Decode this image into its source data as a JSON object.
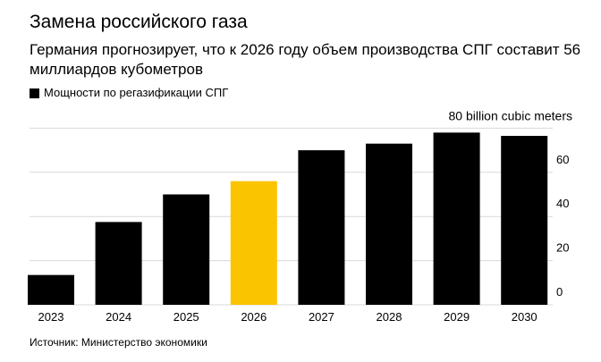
{
  "colors": {
    "bar": "#000000",
    "highlight": "#fbc400",
    "grid": "#d9d9d9",
    "text": "#000000"
  },
  "chart_data": {
    "type": "bar",
    "title": "Замена российского газа",
    "subtitle": "Германия прогнозирует, что к 2026 году объем производства СПГ составит 56 миллиардов кубометров",
    "legend": "Мощности по регазификации СПГ",
    "ylabel": "80 billion cubic meters",
    "source": "Источник: Министерство экономики",
    "categories": [
      "2023",
      "2024",
      "2025",
      "2026",
      "2027",
      "2028",
      "2029",
      "2030"
    ],
    "series": [
      {
        "name": "Мощности по регазификации СПГ",
        "values": [
          13.5,
          37.5,
          50,
          56,
          70,
          73,
          78,
          76.5
        ]
      }
    ],
    "highlight_category": "2026",
    "yticks": [
      0,
      20,
      40,
      60
    ],
    "ylim": [
      0,
      80
    ],
    "grid": true,
    "legend_position": "top-left",
    "yaxis_position": "right"
  }
}
